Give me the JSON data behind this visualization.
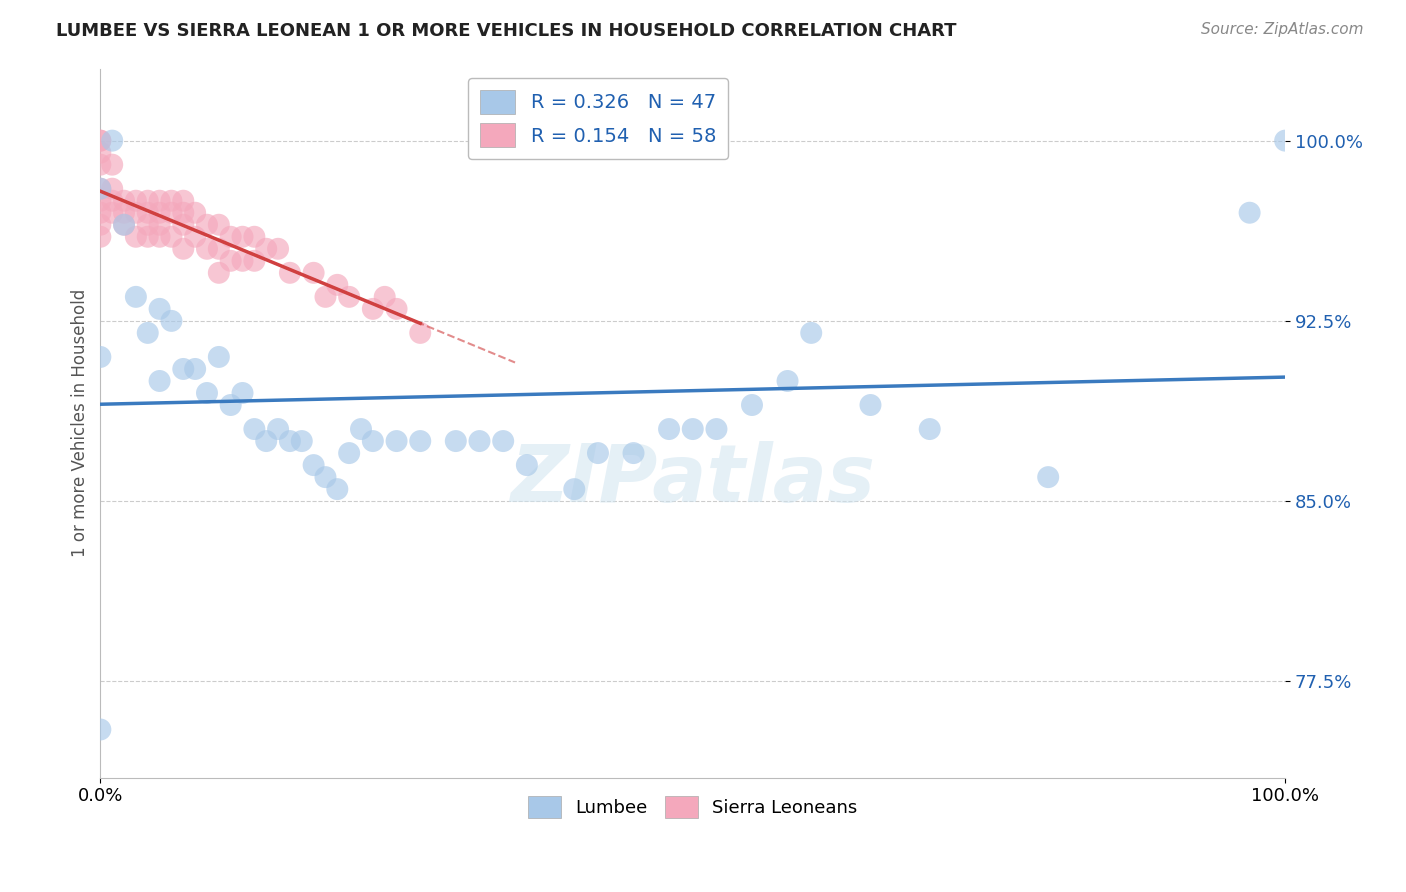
{
  "title": "LUMBEE VS SIERRA LEONEAN 1 OR MORE VEHICLES IN HOUSEHOLD CORRELATION CHART",
  "source": "Source: ZipAtlas.com",
  "ylabel": "1 or more Vehicles in Household",
  "xlabel": "",
  "xlim": [
    0.0,
    1.0
  ],
  "ylim": [
    0.735,
    1.03
  ],
  "yticks": [
    0.775,
    0.85,
    0.925,
    1.0
  ],
  "ytick_labels": [
    "77.5%",
    "85.0%",
    "92.5%",
    "100.0%"
  ],
  "xticks": [
    0.0,
    1.0
  ],
  "xtick_labels": [
    "0.0%",
    "100.0%"
  ],
  "lumbee_R": 0.326,
  "lumbee_N": 47,
  "sierra_R": 0.154,
  "sierra_N": 58,
  "lumbee_color": "#a8c8e8",
  "sierra_color": "#f4a8bc",
  "lumbee_line_color": "#3a7abf",
  "sierra_line_color": "#d04040",
  "legend_R_color": "#2060b0",
  "watermark_color": "#d0e4f0",
  "background_color": "#ffffff",
  "lumbee_x": [
    0.0,
    0.0,
    0.0,
    0.01,
    0.02,
    0.03,
    0.04,
    0.05,
    0.05,
    0.06,
    0.07,
    0.08,
    0.09,
    0.1,
    0.11,
    0.12,
    0.13,
    0.14,
    0.15,
    0.16,
    0.17,
    0.18,
    0.19,
    0.2,
    0.21,
    0.22,
    0.23,
    0.25,
    0.27,
    0.3,
    0.32,
    0.34,
    0.36,
    0.4,
    0.42,
    0.45,
    0.48,
    0.5,
    0.52,
    0.55,
    0.58,
    0.6,
    0.65,
    0.7,
    0.8,
    0.97,
    1.0
  ],
  "lumbee_y": [
    0.755,
    0.91,
    0.98,
    1.0,
    0.965,
    0.935,
    0.92,
    0.93,
    0.9,
    0.925,
    0.905,
    0.905,
    0.895,
    0.91,
    0.89,
    0.895,
    0.88,
    0.875,
    0.88,
    0.875,
    0.875,
    0.865,
    0.86,
    0.855,
    0.87,
    0.88,
    0.875,
    0.875,
    0.875,
    0.875,
    0.875,
    0.875,
    0.865,
    0.855,
    0.87,
    0.87,
    0.88,
    0.88,
    0.88,
    0.89,
    0.9,
    0.92,
    0.89,
    0.88,
    0.86,
    0.97,
    1.0
  ],
  "sierra_x": [
    0.0,
    0.0,
    0.0,
    0.0,
    0.0,
    0.0,
    0.0,
    0.0,
    0.0,
    0.01,
    0.01,
    0.01,
    0.01,
    0.02,
    0.02,
    0.02,
    0.03,
    0.03,
    0.03,
    0.04,
    0.04,
    0.04,
    0.04,
    0.05,
    0.05,
    0.05,
    0.05,
    0.06,
    0.06,
    0.06,
    0.07,
    0.07,
    0.07,
    0.07,
    0.08,
    0.08,
    0.09,
    0.09,
    0.1,
    0.1,
    0.1,
    0.11,
    0.11,
    0.12,
    0.12,
    0.13,
    0.13,
    0.14,
    0.15,
    0.16,
    0.18,
    0.19,
    0.2,
    0.21,
    0.23,
    0.24,
    0.25,
    0.27
  ],
  "sierra_y": [
    1.0,
    1.0,
    0.995,
    0.99,
    0.98,
    0.975,
    0.97,
    0.965,
    0.96,
    0.99,
    0.98,
    0.975,
    0.97,
    0.975,
    0.97,
    0.965,
    0.975,
    0.97,
    0.96,
    0.975,
    0.97,
    0.965,
    0.96,
    0.975,
    0.97,
    0.965,
    0.96,
    0.975,
    0.97,
    0.96,
    0.975,
    0.97,
    0.965,
    0.955,
    0.97,
    0.96,
    0.965,
    0.955,
    0.965,
    0.955,
    0.945,
    0.96,
    0.95,
    0.96,
    0.95,
    0.96,
    0.95,
    0.955,
    0.955,
    0.945,
    0.945,
    0.935,
    0.94,
    0.935,
    0.93,
    0.935,
    0.93,
    0.92
  ]
}
